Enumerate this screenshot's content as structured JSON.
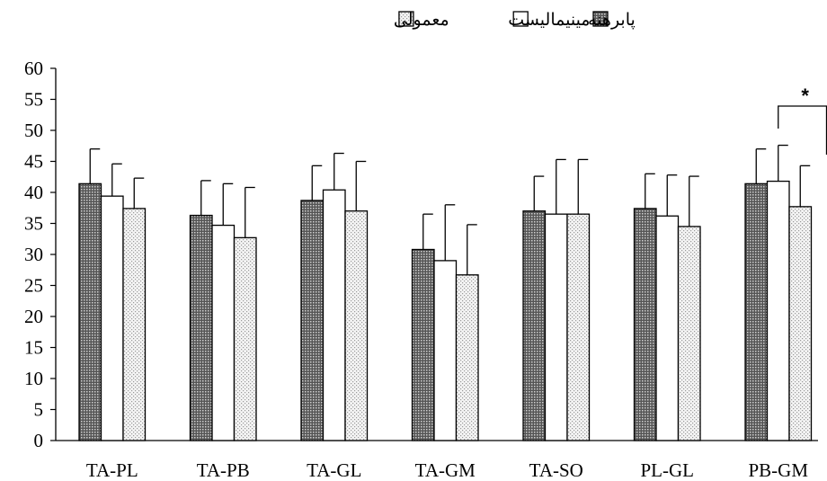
{
  "chart_data": {
    "type": "bar",
    "title": "",
    "xlabel": "",
    "ylabel": "",
    "ylim": [
      0,
      60
    ],
    "yticks": [
      0,
      5,
      10,
      15,
      20,
      25,
      30,
      35,
      40,
      45,
      50,
      55,
      60
    ],
    "grid": false,
    "legend_position": "top-center",
    "categories": [
      "TA-PL",
      "TA-PB",
      "TA-GL",
      "TA-GM",
      "TA-SO",
      "PL-GL",
      "PB-GM"
    ],
    "series": [
      {
        "name": "پابرهنه",
        "pattern": "dark-dotted",
        "color": "#7f7f7f",
        "values": [
          41.4,
          36.3,
          38.7,
          30.8,
          37.0,
          37.4,
          41.4
        ],
        "errors": [
          5.6,
          5.6,
          5.6,
          5.7,
          5.6,
          5.6,
          5.6
        ]
      },
      {
        "name": "مینیمالیست",
        "pattern": "solid-white",
        "color": "#ffffff",
        "values": [
          39.4,
          34.7,
          40.4,
          29.0,
          36.5,
          36.2,
          41.8
        ],
        "errors": [
          5.2,
          6.7,
          5.9,
          9.0,
          8.8,
          6.6,
          5.8
        ]
      },
      {
        "name": "معمولی",
        "pattern": "light-dotted",
        "color": "#d9d9d9",
        "values": [
          37.4,
          32.7,
          37.0,
          26.7,
          36.5,
          34.5,
          37.7
        ],
        "errors": [
          4.9,
          8.1,
          8.0,
          8.1,
          8.8,
          8.1,
          6.6
        ]
      }
    ],
    "annotations": [
      {
        "text": "*",
        "category": "PB-GM",
        "between_series": [
          1,
          2
        ]
      }
    ]
  }
}
